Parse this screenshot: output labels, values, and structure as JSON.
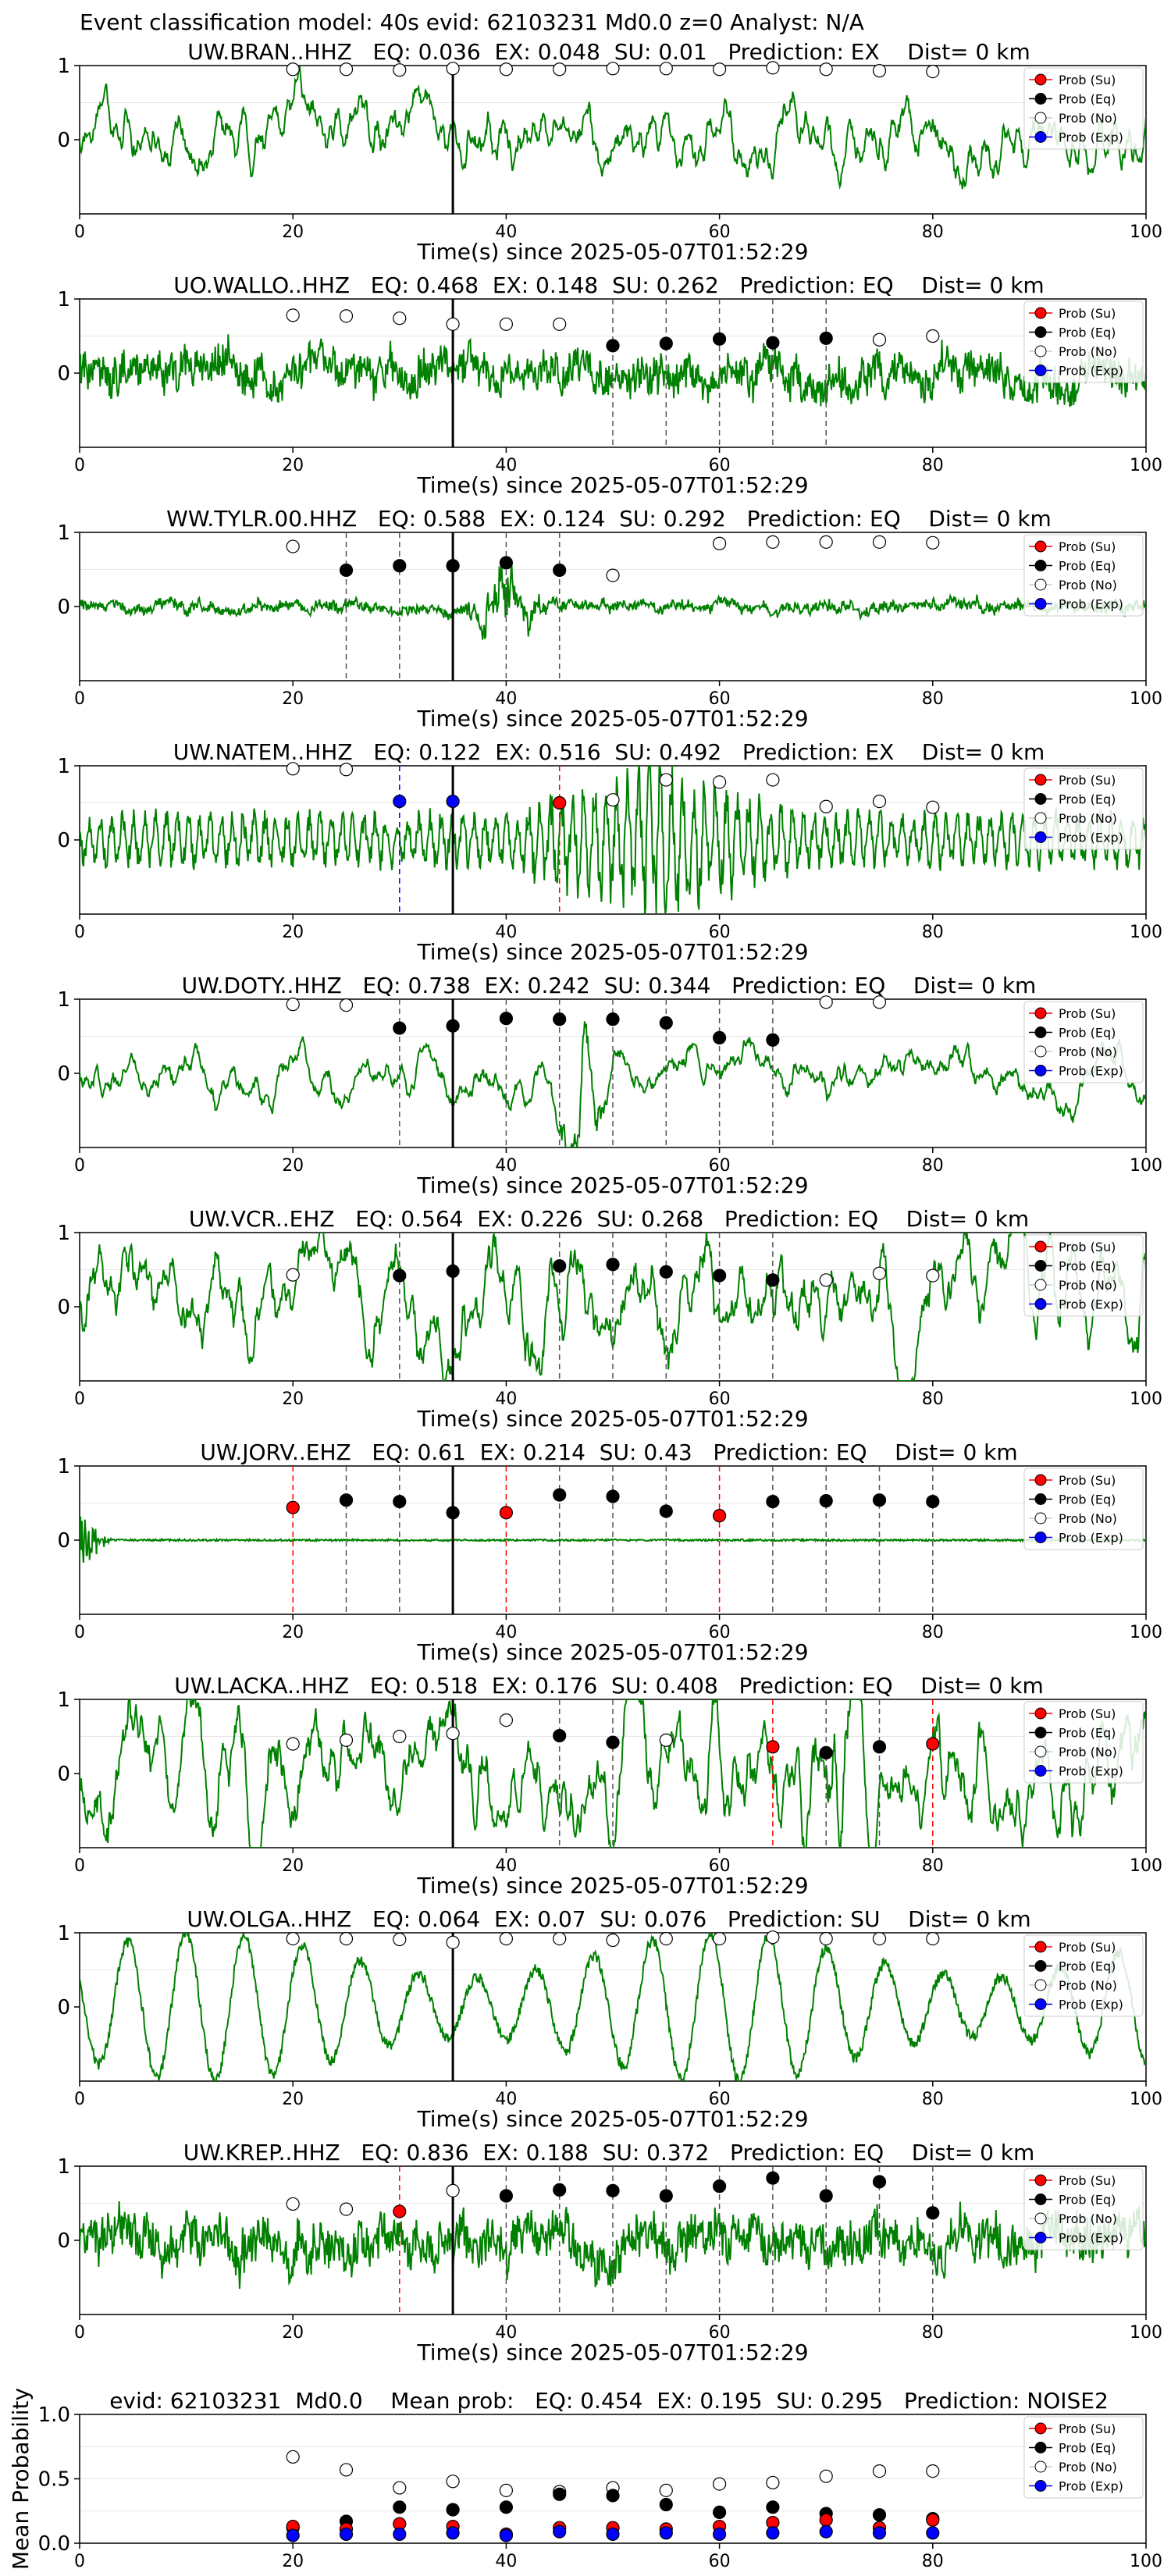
{
  "figure_title": "Event classification model: 40s evid: 62103231 Md0.0 z=0 Analyst: N/A",
  "legend_labels": [
    "Prob (Su)",
    "Prob (Eq)",
    "Prob (No)",
    "Prob (Exp)"
  ],
  "colors": {
    "waveform": "#008000",
    "su": "#ff0000",
    "eq": "#000000",
    "no": "#ffffff",
    "exp": "#0000ff",
    "marker_line_eq": "#555555",
    "marker_line_su": "#ff0000",
    "marker_line_exp": "#0000ff",
    "pick_line": "#000000"
  },
  "chart_data": [
    {
      "type": "line",
      "panel": "station",
      "title": "UW.BRAN..HHZ   EQ: 0.036  EX: 0.048  SU: 0.01   Prediction: EX    Dist= 0 km",
      "xlabel": "Time(s) since 2025-05-07T01:52:29",
      "xlim": [
        0,
        100
      ],
      "ylim": [
        -1,
        1
      ],
      "xticks": [
        "0",
        "20",
        "40",
        "60",
        "80",
        "100"
      ],
      "yticks": [
        "1",
        "0"
      ],
      "pick_time": 35,
      "wave": {
        "kind": "lowfreq",
        "amp": 0.35,
        "seed": 11
      },
      "series": [
        {
          "name": "Prob (No)",
          "x": [
            20,
            25,
            30,
            35,
            40,
            45,
            50,
            55,
            60,
            65,
            70,
            75,
            80
          ],
          "values": [
            0.95,
            0.95,
            0.94,
            0.96,
            0.95,
            0.95,
            0.96,
            0.96,
            0.95,
            0.97,
            0.95,
            0.93,
            0.92
          ]
        }
      ],
      "markers": []
    },
    {
      "type": "line",
      "panel": "station",
      "title": "UO.WALLO..HHZ   EQ: 0.468  EX: 0.148  SU: 0.262   Prediction: EQ    Dist= 0 km",
      "xlabel": "Time(s) since 2025-05-07T01:52:29",
      "xlim": [
        0,
        100
      ],
      "ylim": [
        -1,
        1
      ],
      "xticks": [
        "0",
        "20",
        "40",
        "60",
        "80",
        "100"
      ],
      "yticks": [
        "1",
        "0"
      ],
      "pick_time": 35,
      "wave": {
        "kind": "noisy",
        "amp": 0.33,
        "seed": 23
      },
      "series": [
        {
          "name": "Prob (No)",
          "x": [
            20,
            25,
            30,
            35,
            40,
            45,
            75,
            80
          ],
          "values": [
            0.78,
            0.77,
            0.74,
            0.66,
            0.66,
            0.66,
            0.45,
            0.5
          ]
        },
        {
          "name": "Prob (Eq)",
          "x": [
            50,
            55,
            60,
            65,
            70
          ],
          "values": [
            0.37,
            0.4,
            0.46,
            0.41,
            0.47
          ]
        }
      ],
      "markers": [
        {
          "x": 50,
          "cls": "eq"
        },
        {
          "x": 55,
          "cls": "eq"
        },
        {
          "x": 60,
          "cls": "eq"
        },
        {
          "x": 65,
          "cls": "eq"
        },
        {
          "x": 70,
          "cls": "eq"
        }
      ]
    },
    {
      "type": "line",
      "panel": "station",
      "title": "WW.TYLR.00.HHZ   EQ: 0.588  EX: 0.124  SU: 0.292   Prediction: EQ    Dist= 0 km",
      "xlabel": "Time(s) since 2025-05-07T01:52:29",
      "xlim": [
        0,
        100
      ],
      "ylim": [
        -1,
        1
      ],
      "xticks": [
        "0",
        "20",
        "40",
        "60",
        "80",
        "100"
      ],
      "yticks": [
        "1",
        "0"
      ],
      "pick_time": 35,
      "wave": {
        "kind": "small",
        "amp": 0.14,
        "seed": 37,
        "burst": [
          36,
          44,
          0.6
        ]
      },
      "series": [
        {
          "name": "Prob (No)",
          "x": [
            20,
            50,
            60,
            65,
            70,
            75,
            80
          ],
          "values": [
            0.81,
            0.42,
            0.85,
            0.87,
            0.87,
            0.87,
            0.86
          ]
        },
        {
          "name": "Prob (Eq)",
          "x": [
            25,
            30,
            35,
            40,
            45
          ],
          "values": [
            0.49,
            0.55,
            0.55,
            0.59,
            0.49
          ]
        }
      ],
      "markers": [
        {
          "x": 25,
          "cls": "eq"
        },
        {
          "x": 30,
          "cls": "eq"
        },
        {
          "x": 40,
          "cls": "eq"
        },
        {
          "x": 45,
          "cls": "eq"
        }
      ]
    },
    {
      "type": "line",
      "panel": "station",
      "title": "UW.NATEM..HHZ   EQ: 0.122  EX: 0.516  SU: 0.492   Prediction: EX    Dist= 0 km",
      "xlabel": "Time(s) since 2025-05-07T01:52:29",
      "xlim": [
        0,
        100
      ],
      "ylim": [
        -1,
        1
      ],
      "xticks": [
        "0",
        "20",
        "40",
        "60",
        "80",
        "100"
      ],
      "yticks": [
        "1",
        "0"
      ],
      "pick_time": 35,
      "wave": {
        "kind": "oscill",
        "amp": 0.28,
        "seed": 41,
        "burst": [
          40,
          68,
          0.55
        ]
      },
      "series": [
        {
          "name": "Prob (No)",
          "x": [
            20,
            25,
            50,
            55,
            60,
            65,
            70,
            75,
            80
          ],
          "values": [
            0.96,
            0.95,
            0.54,
            0.81,
            0.78,
            0.81,
            0.45,
            0.52,
            0.44
          ]
        },
        {
          "name": "Prob (Exp)",
          "x": [
            30,
            35
          ],
          "values": [
            0.52,
            0.52
          ]
        },
        {
          "name": "Prob (Su)",
          "x": [
            45
          ],
          "values": [
            0.5
          ]
        }
      ],
      "markers": [
        {
          "x": 30,
          "cls": "exp"
        },
        {
          "x": 45,
          "cls": "su"
        }
      ]
    },
    {
      "type": "line",
      "panel": "station",
      "title": "UW.DOTY..HHZ   EQ: 0.738  EX: 0.242  SU: 0.344   Prediction: EQ    Dist= 0 km",
      "xlabel": "Time(s) since 2025-05-07T01:52:29",
      "xlim": [
        0,
        100
      ],
      "ylim": [
        -1,
        1
      ],
      "xticks": [
        "0",
        "20",
        "40",
        "60",
        "80",
        "100"
      ],
      "yticks": [
        "1",
        "0"
      ],
      "pick_time": 35,
      "wave": {
        "kind": "lowfreq",
        "amp": 0.22,
        "seed": 53,
        "burst": [
          44,
          50,
          0.55
        ]
      },
      "series": [
        {
          "name": "Prob (No)",
          "x": [
            20,
            25,
            70,
            75
          ],
          "values": [
            0.93,
            0.92,
            0.96,
            0.96
          ]
        },
        {
          "name": "Prob (Eq)",
          "x": [
            30,
            35,
            40,
            45,
            50,
            55,
            60,
            65
          ],
          "values": [
            0.61,
            0.64,
            0.74,
            0.73,
            0.73,
            0.68,
            0.48,
            0.45
          ]
        }
      ],
      "markers": [
        {
          "x": 30,
          "cls": "eq"
        },
        {
          "x": 40,
          "cls": "eq"
        },
        {
          "x": 45,
          "cls": "eq"
        },
        {
          "x": 50,
          "cls": "eq"
        },
        {
          "x": 55,
          "cls": "eq"
        },
        {
          "x": 60,
          "cls": "eq"
        },
        {
          "x": 65,
          "cls": "eq"
        }
      ]
    },
    {
      "type": "line",
      "panel": "station",
      "title": "UW.VCR..EHZ   EQ: 0.564  EX: 0.226  SU: 0.268   Prediction: EQ    Dist= 0 km",
      "xlabel": "Time(s) since 2025-05-07T01:52:29",
      "xlim": [
        0,
        100
      ],
      "ylim": [
        -1,
        1
      ],
      "xticks": [
        "0",
        "20",
        "40",
        "60",
        "80",
        "100"
      ],
      "yticks": [
        "1",
        "0"
      ],
      "pick_time": 35,
      "wave": {
        "kind": "lowfreq",
        "amp": 0.5,
        "seed": 67
      },
      "series": [
        {
          "name": "Prob (No)",
          "x": [
            20,
            70,
            75,
            80
          ],
          "values": [
            0.43,
            0.36,
            0.45,
            0.42
          ]
        },
        {
          "name": "Prob (Eq)",
          "x": [
            30,
            35,
            45,
            50,
            55,
            60,
            65
          ],
          "values": [
            0.42,
            0.48,
            0.55,
            0.57,
            0.47,
            0.42,
            0.36
          ]
        }
      ],
      "markers": [
        {
          "x": 30,
          "cls": "eq"
        },
        {
          "x": 45,
          "cls": "eq"
        },
        {
          "x": 50,
          "cls": "eq"
        },
        {
          "x": 55,
          "cls": "eq"
        },
        {
          "x": 60,
          "cls": "eq"
        },
        {
          "x": 65,
          "cls": "eq"
        }
      ]
    },
    {
      "type": "line",
      "panel": "station",
      "title": "UW.JORV..EHZ   EQ: 0.61  EX: 0.214  SU: 0.43   Prediction: EQ    Dist= 0 km",
      "xlabel": "Time(s) since 2025-05-07T01:52:29",
      "xlim": [
        0,
        100
      ],
      "ylim": [
        -1,
        1
      ],
      "xticks": [
        "0",
        "20",
        "40",
        "60",
        "80",
        "100"
      ],
      "yticks": [
        "1",
        "0"
      ],
      "pick_time": 35,
      "wave": {
        "kind": "flat",
        "amp": 0.03,
        "seed": 71,
        "spike": [
          0,
          3,
          0.9
        ]
      },
      "series": [
        {
          "name": "Prob (Su)",
          "x": [
            20,
            40,
            60
          ],
          "values": [
            0.44,
            0.37,
            0.33
          ]
        },
        {
          "name": "Prob (Eq)",
          "x": [
            25,
            30,
            35,
            45,
            50,
            55,
            65,
            70,
            75,
            80
          ],
          "values": [
            0.54,
            0.52,
            0.37,
            0.61,
            0.59,
            0.39,
            0.52,
            0.53,
            0.54,
            0.52
          ]
        }
      ],
      "markers": [
        {
          "x": 20,
          "cls": "su"
        },
        {
          "x": 25,
          "cls": "eq"
        },
        {
          "x": 30,
          "cls": "eq"
        },
        {
          "x": 40,
          "cls": "su"
        },
        {
          "x": 45,
          "cls": "eq"
        },
        {
          "x": 50,
          "cls": "eq"
        },
        {
          "x": 55,
          "cls": "eq"
        },
        {
          "x": 60,
          "cls": "su"
        },
        {
          "x": 65,
          "cls": "eq"
        },
        {
          "x": 70,
          "cls": "eq"
        },
        {
          "x": 75,
          "cls": "eq"
        },
        {
          "x": 80,
          "cls": "eq"
        }
      ]
    },
    {
      "type": "line",
      "panel": "station",
      "title": "UW.LACKA..HHZ   EQ: 0.518  EX: 0.176  SU: 0.408   Prediction: EQ    Dist= 0 km",
      "xlabel": "Time(s) since 2025-05-07T01:52:29",
      "xlim": [
        0,
        100
      ],
      "ylim": [
        -1,
        1
      ],
      "xticks": [
        "0",
        "20",
        "40",
        "60",
        "80",
        "100"
      ],
      "yticks": [
        "1",
        "0"
      ],
      "pick_time": 35,
      "wave": {
        "kind": "lowfreq",
        "amp": 0.55,
        "seed": 83,
        "burst": [
          62,
          78,
          0.35
        ]
      },
      "series": [
        {
          "name": "Prob (No)",
          "x": [
            20,
            25,
            30,
            35,
            40,
            55
          ],
          "values": [
            0.4,
            0.45,
            0.5,
            0.54,
            0.72,
            0.45
          ]
        },
        {
          "name": "Prob (Eq)",
          "x": [
            45,
            50,
            70,
            75
          ],
          "values": [
            0.51,
            0.42,
            0.28,
            0.36
          ]
        },
        {
          "name": "Prob (Su)",
          "x": [
            65,
            80
          ],
          "values": [
            0.36,
            0.4
          ]
        }
      ],
      "markers": [
        {
          "x": 45,
          "cls": "eq"
        },
        {
          "x": 50,
          "cls": "eq"
        },
        {
          "x": 65,
          "cls": "su"
        },
        {
          "x": 70,
          "cls": "eq"
        },
        {
          "x": 75,
          "cls": "eq"
        },
        {
          "x": 80,
          "cls": "su"
        }
      ]
    },
    {
      "type": "line",
      "panel": "station",
      "title": "UW.OLGA..HHZ   EQ: 0.064  EX: 0.07  SU: 0.076   Prediction: SU    Dist= 0 km",
      "xlabel": "Time(s) since 2025-05-07T01:52:29",
      "xlim": [
        0,
        100
      ],
      "ylim": [
        -1,
        1
      ],
      "xticks": [
        "0",
        "20",
        "40",
        "60",
        "80",
        "100"
      ],
      "yticks": [
        "1",
        "0"
      ],
      "pick_time": 35,
      "wave": {
        "kind": "sine",
        "amp": 0.72,
        "seed": 97
      },
      "series": [
        {
          "name": "Prob (No)",
          "x": [
            20,
            25,
            30,
            35,
            40,
            45,
            50,
            55,
            60,
            65,
            70,
            75,
            80
          ],
          "values": [
            0.92,
            0.92,
            0.91,
            0.87,
            0.92,
            0.92,
            0.9,
            0.92,
            0.92,
            0.94,
            0.92,
            0.92,
            0.92
          ]
        }
      ],
      "markers": []
    },
    {
      "type": "line",
      "panel": "station",
      "title": "UW.KREP..HHZ   EQ: 0.836  EX: 0.188  SU: 0.372   Prediction: EQ    Dist= 0 km",
      "xlabel": "Time(s) since 2025-05-07T01:52:29",
      "xlim": [
        0,
        100
      ],
      "ylim": [
        -1,
        1
      ],
      "xticks": [
        "0",
        "20",
        "40",
        "60",
        "80",
        "100"
      ],
      "yticks": [
        "1",
        "0"
      ],
      "pick_time": 35,
      "wave": {
        "kind": "noisy",
        "amp": 0.4,
        "seed": 101
      },
      "series": [
        {
          "name": "Prob (No)",
          "x": [
            20,
            25,
            35
          ],
          "values": [
            0.49,
            0.42,
            0.67
          ]
        },
        {
          "name": "Prob (Su)",
          "x": [
            30
          ],
          "values": [
            0.39
          ]
        },
        {
          "name": "Prob (Eq)",
          "x": [
            40,
            45,
            50,
            55,
            60,
            65,
            70,
            75,
            80
          ],
          "values": [
            0.6,
            0.68,
            0.67,
            0.6,
            0.73,
            0.84,
            0.6,
            0.79,
            0.37
          ]
        }
      ],
      "markers": [
        {
          "x": 30,
          "cls": "su"
        },
        {
          "x": 40,
          "cls": "eq"
        },
        {
          "x": 45,
          "cls": "eq"
        },
        {
          "x": 50,
          "cls": "eq"
        },
        {
          "x": 55,
          "cls": "eq"
        },
        {
          "x": 60,
          "cls": "eq"
        },
        {
          "x": 65,
          "cls": "eq"
        },
        {
          "x": 70,
          "cls": "eq"
        },
        {
          "x": 75,
          "cls": "eq"
        },
        {
          "x": 80,
          "cls": "eq"
        }
      ]
    },
    {
      "type": "scatter",
      "panel": "mean",
      "title": "evid: 62103231  Md0.0    Mean prob:   EQ: 0.454  EX: 0.195  SU: 0.295   Prediction: NOISE2",
      "ylabel": "Mean Probability",
      "xlim": [
        0,
        100
      ],
      "ylim": [
        0,
        1
      ],
      "xticks": [
        "0",
        "20",
        "40",
        "60",
        "80",
        "100"
      ],
      "yticks": [
        "1.0",
        "0.5",
        "0.0"
      ],
      "series": [
        {
          "name": "Prob (No)",
          "x": [
            20,
            25,
            30,
            35,
            40,
            45,
            50,
            55,
            60,
            65,
            70,
            75,
            80
          ],
          "values": [
            0.67,
            0.57,
            0.43,
            0.48,
            0.41,
            0.4,
            0.43,
            0.41,
            0.46,
            0.47,
            0.52,
            0.56,
            0.56
          ]
        },
        {
          "name": "Prob (Eq)",
          "x": [
            20,
            25,
            30,
            35,
            40,
            45,
            50,
            55,
            60,
            65,
            70,
            75,
            80
          ],
          "values": [
            0.12,
            0.17,
            0.28,
            0.26,
            0.28,
            0.38,
            0.37,
            0.3,
            0.24,
            0.28,
            0.23,
            0.22,
            0.19
          ]
        },
        {
          "name": "Prob (Su)",
          "x": [
            20,
            25,
            30,
            35,
            40,
            45,
            50,
            55,
            60,
            65,
            70,
            75,
            80
          ],
          "values": [
            0.13,
            0.11,
            0.15,
            0.13,
            0.07,
            0.12,
            0.12,
            0.11,
            0.13,
            0.16,
            0.18,
            0.12,
            0.18
          ]
        },
        {
          "name": "Prob (Exp)",
          "x": [
            20,
            25,
            30,
            35,
            40,
            45,
            50,
            55,
            60,
            65,
            70,
            75,
            80
          ],
          "values": [
            0.06,
            0.07,
            0.07,
            0.08,
            0.06,
            0.09,
            0.07,
            0.08,
            0.07,
            0.08,
            0.09,
            0.08,
            0.08
          ]
        }
      ]
    }
  ]
}
